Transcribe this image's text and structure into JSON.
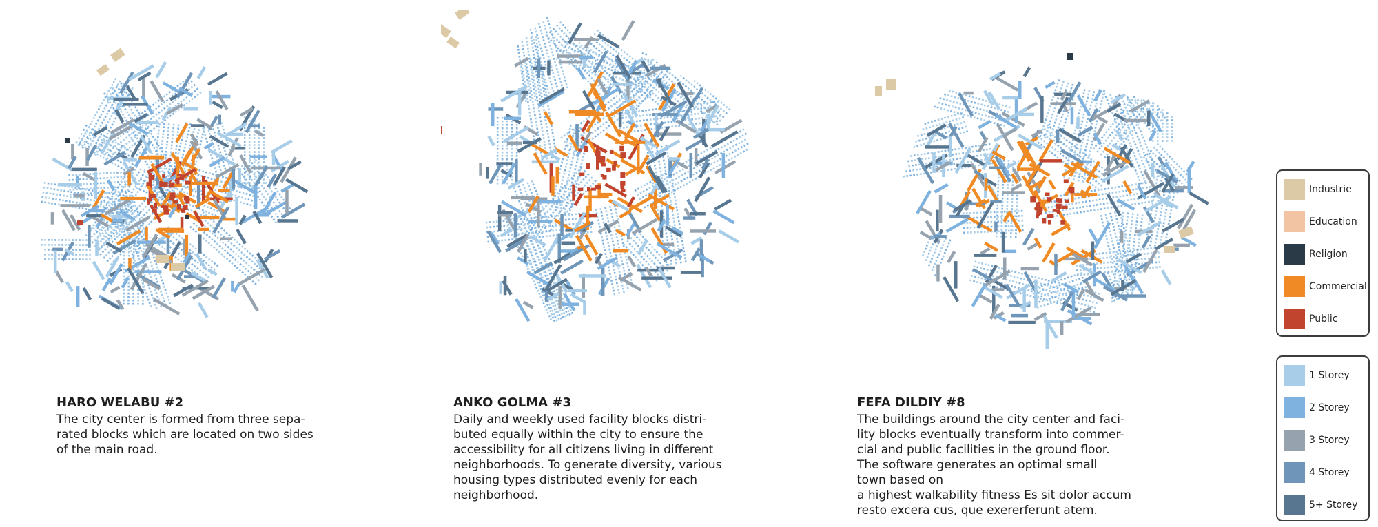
{
  "colors": {
    "industrie": "#dcc9a6",
    "education": "#f2c4a4",
    "religion": "#2b3a47",
    "commercial": "#f08a24",
    "public": "#c0442e",
    "storey_1": "#a8cde8",
    "storey_2": "#7fb2de",
    "storey_3": "#96a3ae",
    "storey_4": "#6f96b8",
    "storey_5plus": "#58768f"
  },
  "maps": [
    {
      "id": "haro",
      "title": "HARO WELABU #2",
      "text": "The city center is formed from three sepa-\nrated blocks which are located on two sides\nof the main road."
    },
    {
      "id": "anko",
      "title": "ANKO GOLMA #3",
      "text": "Daily and weekly used facility blocks distri-\nbuted equally within the city to ensure the\naccessibility for all citizens living in different\nneighborhoods. To generate diversity, various\nhousing types distributed evenly for each\nneighborhood."
    },
    {
      "id": "fefa",
      "title": "FEFA DILDIY #8",
      "text": "The buildings around the city center and faci-\nlity blocks eventually transform into commer-\ncial and public facilities in the ground floor.\nThe software generates an optimal small\ntown based on\na highest walkability fitness Es sit dolor accum\nresto excera cus, que exererferunt atem."
    }
  ],
  "legend_use": [
    {
      "label": "Industrie",
      "color_key": "industrie"
    },
    {
      "label": "Education",
      "color_key": "education"
    },
    {
      "label": "Religion",
      "color_key": "religion"
    },
    {
      "label": "Commercial",
      "color_key": "commercial"
    },
    {
      "label": "Public",
      "color_key": "public"
    }
  ],
  "legend_storey": [
    {
      "label": "1 Storey",
      "color_key": "storey_1"
    },
    {
      "label": "2 Storey",
      "color_key": "storey_2"
    },
    {
      "label": "3 Storey",
      "color_key": "storey_3"
    },
    {
      "label": "4 Storey",
      "color_key": "storey_4"
    },
    {
      "label": "5+ Storey",
      "color_key": "storey_5plus"
    }
  ]
}
